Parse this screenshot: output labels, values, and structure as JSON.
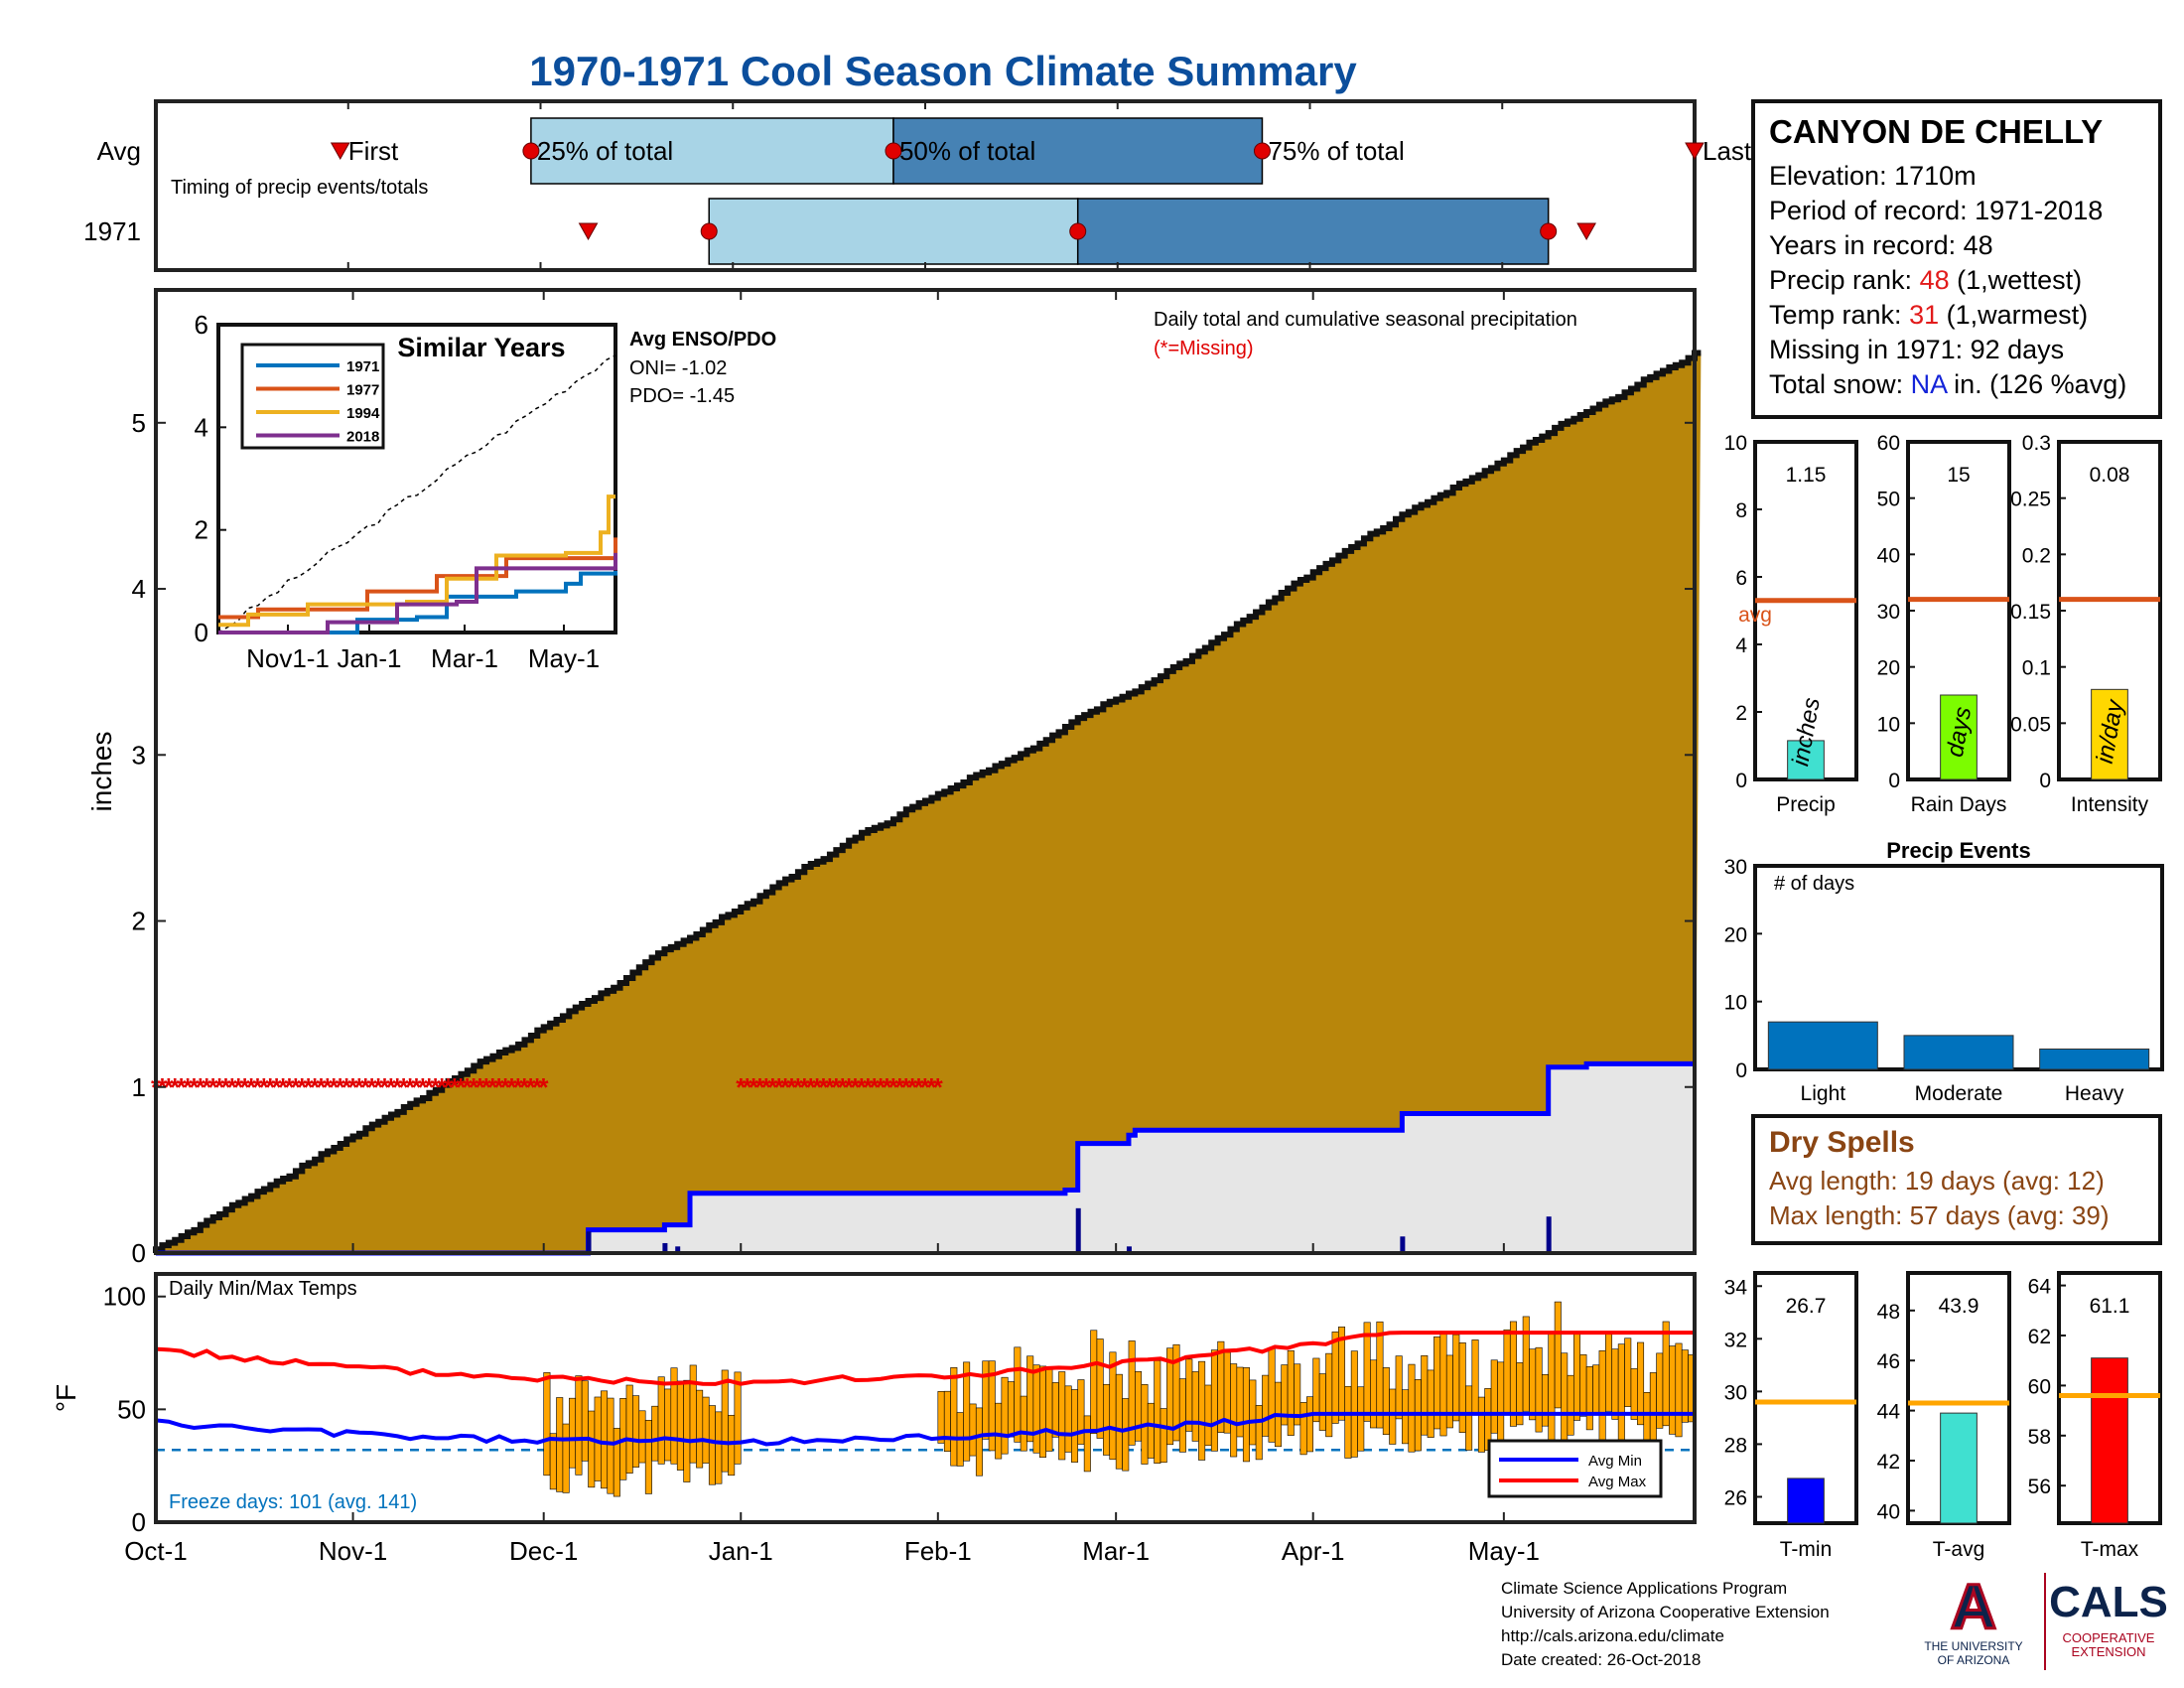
{
  "title": "1970-1971 Cool Season Climate Summary",
  "timing_panel": {
    "row_labels": [
      "Avg",
      "1971"
    ],
    "note": "Timing of precip events/totals",
    "markers": {
      "first": "First",
      "p25": "25% of total",
      "p50": "50% of total",
      "p75": "75% of total",
      "last": "Last"
    },
    "avg": {
      "first": "1970-10-30",
      "p25": "1970-11-29",
      "p50": "1971-01-25",
      "p75": "1971-03-24",
      "last": "1971-05-31"
    },
    "y1971": {
      "first": "1970-12-08",
      "p25": "1970-12-27",
      "p50": "1971-02-23",
      "p75": "1971-05-08",
      "last": "1971-05-14"
    },
    "colors": {
      "q1": "#a8d4e6",
      "q2": "#4682b4",
      "marker": "#e00000"
    }
  },
  "main_chart": {
    "ylabel": "inches",
    "yticks": [
      0,
      1,
      2,
      3,
      4,
      5
    ],
    "ylim": [
      0,
      5.8
    ],
    "title": "Daily total and cumulative seasonal precipitation",
    "missing_note": "(*=Missing)",
    "missing_value_marker": 1,
    "missing_ranges": [
      [
        "1970-10-01",
        "1970-12-01"
      ],
      [
        "1971-01-01",
        "1971-02-01"
      ]
    ],
    "colors": {
      "avg_fill": "#b8860b",
      "obs_fill": "#e6e6e6",
      "obs_line": "#0000ff",
      "missing": "#e00000"
    }
  },
  "inset": {
    "title": "Similar Years",
    "xticks": [
      "Nov1-1",
      "Jan-1",
      "Mar-1",
      "May-1"
    ],
    "yticks": [
      0,
      2,
      4,
      6
    ],
    "legend": [
      "1971",
      "1977",
      "1994",
      "2018"
    ],
    "colors": [
      "#0072bd",
      "#d95319",
      "#edb120",
      "#7e2f8e"
    ],
    "enso_title": "Avg ENSO/PDO",
    "oni": "ONI= -1.02",
    "pdo": "PDO= -1.45"
  },
  "temp_chart": {
    "title": "Daily Min/Max Temps",
    "ylabel": "°F",
    "yticks": [
      0,
      50,
      100
    ],
    "ylim": [
      0,
      100
    ],
    "freeze_line": 32,
    "freeze_note": "Freeze days: 101 (avg. 141)",
    "legend": [
      "Avg Min",
      "Avg Max"
    ],
    "colors": {
      "bar": "#ffa500",
      "avg_min": "#0000ff",
      "avg_max": "#ff0000",
      "freeze": "#0072bd"
    }
  },
  "x_axis": {
    "ticks": [
      "Oct-1",
      "Nov-1",
      "Dec-1",
      "Jan-1",
      "Feb-1",
      "Mar-1",
      "Apr-1",
      "May-1"
    ],
    "start": "1970-10-01",
    "end": "1971-05-31"
  },
  "station": {
    "name": "CANYON DE CHELLY",
    "elevation": "Elevation: 1710m",
    "period": "Period of record: 1971-2018",
    "years": "Years in record: 48",
    "precip_rank_label": "Precip rank: ",
    "precip_rank_value": "48",
    "precip_rank_note": " (1,wettest)",
    "temp_rank_label": "Temp rank: ",
    "temp_rank_value": "31",
    "temp_rank_note": " (1,warmest)",
    "missing": "Missing in 1971: 92 days",
    "snow_label": "Total snow: ",
    "snow_value": "NA",
    "snow_note": " in. (126 %avg)"
  },
  "stat_bars": [
    {
      "xlabel": "Precip",
      "unit": "inches",
      "value": 1.15,
      "value_label": "1.15",
      "avg": 5.3,
      "yticks": [
        0,
        2,
        4,
        6,
        8,
        10
      ],
      "ylim": [
        0,
        10
      ],
      "avg_label": "avg",
      "color": "#40e0d0"
    },
    {
      "xlabel": "Rain Days",
      "unit": "days",
      "value": 15,
      "value_label": "15",
      "avg": 32,
      "yticks": [
        0,
        10,
        20,
        30,
        40,
        50,
        60
      ],
      "ylim": [
        0,
        60
      ],
      "color": "#7cfc00"
    },
    {
      "xlabel": "Intensity",
      "unit": "in/day",
      "value": 0.08,
      "value_label": "0.08",
      "avg": 0.16,
      "yticks": [
        0,
        0.05,
        0.1,
        0.15,
        0.2,
        0.25,
        0.3
      ],
      "ytick_labels": [
        "0",
        "0.05",
        "0.1",
        "0.15",
        "0.2",
        "0.25",
        "0.3"
      ],
      "ylim": [
        0,
        0.3
      ],
      "color": "#ffd700"
    }
  ],
  "avg_line_color": "#d95319",
  "precip_events": {
    "title": "Precip Events",
    "ylabel_note": "# of days",
    "categories": [
      "Light",
      "Moderate",
      "Heavy"
    ],
    "values": [
      7,
      5,
      3
    ],
    "yticks": [
      0,
      10,
      20,
      30
    ],
    "ylim": [
      0,
      30
    ],
    "color": "#0072bd"
  },
  "dry_spells": {
    "title": "Dry Spells",
    "avg_length": "Avg length: 19 days (avg: 12)",
    "max_length": "Max length: 57 days (avg: 39)"
  },
  "temp_bars": [
    {
      "xlabel": "T-min",
      "value": 26.7,
      "value_label": "26.7",
      "avg": 29.6,
      "yticks": [
        26,
        28,
        30,
        32,
        34
      ],
      "ylim": [
        25,
        34.5
      ],
      "color": "#0000ff"
    },
    {
      "xlabel": "T-avg",
      "value": 43.9,
      "value_label": "43.9",
      "avg": 44.3,
      "yticks": [
        40,
        42,
        44,
        46,
        48
      ],
      "ylim": [
        39.5,
        49.5
      ],
      "color": "#40e0d0"
    },
    {
      "xlabel": "T-max",
      "value": 61.1,
      "value_label": "61.1",
      "avg": 59.6,
      "yticks": [
        56,
        58,
        60,
        62,
        64
      ],
      "ylim": [
        54.5,
        64.5
      ],
      "color": "#ff0000"
    }
  ],
  "temp_avg_line_color": "#ffa500",
  "credits": [
    "Climate Science Applications Program",
    "University of Arizona Cooperative Extension",
    "http://cals.arizona.edu/climate",
    " Date created: 26-Oct-2018"
  ],
  "logos": {
    "ua_letter": "A",
    "ua_line1": "THE UNIVERSITY",
    "ua_line2": "OF ARIZONA",
    "cals": "CALS",
    "cals_line1": "COOPERATIVE",
    "cals_line2": "EXTENSION"
  }
}
